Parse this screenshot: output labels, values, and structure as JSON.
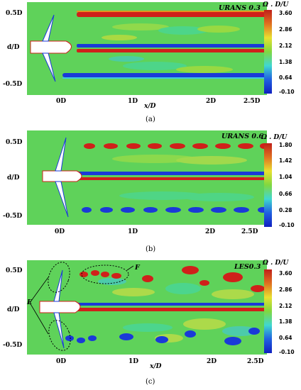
{
  "panels": [
    {
      "id": "a",
      "title": "URANS 0.3",
      "colorbar_title": "Ω . D/U",
      "colorbar_ticks": [
        "3.60",
        "2.86",
        "2.12",
        "1.38",
        "0.64",
        "-0.10"
      ],
      "y_ticks": [
        "0.5D",
        "d/D",
        "-0.5D"
      ],
      "x_ticks": [
        "0D",
        "1D",
        "x/D",
        "2D",
        "2.5D"
      ],
      "caption": "(a)"
    },
    {
      "id": "b",
      "title": "URANS 0.6",
      "colorbar_title": "Ω . D/U",
      "colorbar_ticks": [
        "1.80",
        "1.42",
        "1.04",
        "0.66",
        "0.28",
        "-0.10"
      ],
      "y_ticks": [
        "0.5D",
        "d/D",
        "-0.5D"
      ],
      "x_ticks": [
        "0D",
        "1D",
        "2D",
        "2.5D"
      ],
      "caption": "(b)"
    },
    {
      "id": "c",
      "title": "LES0.3",
      "colorbar_title": "Ω . D/U",
      "colorbar_ticks": [
        "3.60",
        "2.86",
        "2.12",
        "1.38",
        "0.64",
        "-0.10"
      ],
      "y_ticks": [
        "0.5D",
        "d/D",
        "-0.5D"
      ],
      "x_ticks": [
        "0D",
        "1D",
        "x/D",
        "2D",
        "2.5D"
      ],
      "annotations": [
        "F",
        "E"
      ],
      "caption": "(c)"
    }
  ],
  "colors": {
    "background_field": "#5fd25a",
    "high_vorticity": "#d0201a",
    "low_vorticity": "#1a3ad8",
    "mid": "#e8e030",
    "cyan": "#40d8d0"
  }
}
